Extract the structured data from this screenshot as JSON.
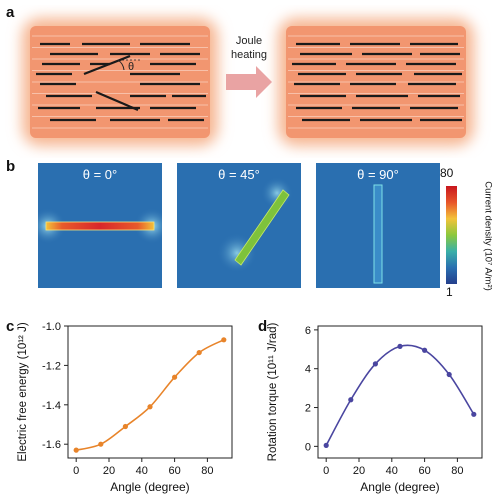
{
  "panels": {
    "a": "a",
    "b": "b",
    "c": "c",
    "d": "d"
  },
  "panel_a": {
    "angle_symbol": "θ",
    "arrow_label_line1": "Joule",
    "arrow_label_line2": "heating",
    "colors": {
      "glow": "#f08a5a",
      "core": "#f3b08e",
      "rod": "#1a1a1a",
      "arrow": "#e8a0a0"
    }
  },
  "panel_b": {
    "titles": [
      "θ = 0°",
      "θ = 45°",
      "θ = 90°"
    ],
    "colorbar": {
      "max": "80",
      "min": "1",
      "label": "Current density (10⁷ A/m²)"
    },
    "colors": {
      "background": "#2a6fb0"
    }
  },
  "chart_data": [
    {
      "type": "line",
      "title": "",
      "xlabel": "Angle (degree)",
      "ylabel": "Electric free energy (10¹² J)",
      "xlim": [
        -5,
        95
      ],
      "ylim": [
        -1.67,
        -1.0
      ],
      "xticks": [
        "0",
        "20",
        "40",
        "60",
        "80"
      ],
      "yticks": [
        "-1.6",
        "-1.4",
        "-1.2",
        "-1.0"
      ],
      "ytick_values": [
        -1.6,
        -1.4,
        -1.2,
        -1.0
      ],
      "xtick_values": [
        0,
        20,
        40,
        60,
        80
      ],
      "color": "#e8842a",
      "x": [
        0,
        15,
        30,
        45,
        60,
        75,
        90
      ],
      "y": [
        -1.63,
        -1.6,
        -1.51,
        -1.41,
        -1.26,
        -1.135,
        -1.07
      ]
    },
    {
      "type": "line",
      "title": "",
      "xlabel": "Angle (degree)",
      "ylabel": "Rotation torque (10¹¹ J/rad)",
      "xlim": [
        -5,
        95
      ],
      "ylim": [
        -0.6,
        6.2
      ],
      "xticks": [
        "0",
        "20",
        "40",
        "60",
        "80"
      ],
      "yticks": [
        "0",
        "2",
        "4",
        "6"
      ],
      "ytick_values": [
        0,
        2,
        4,
        6
      ],
      "xtick_values": [
        0,
        20,
        40,
        60,
        80
      ],
      "color": "#4a46a0",
      "x": [
        0,
        15,
        30,
        45,
        60,
        75,
        90
      ],
      "y": [
        0.05,
        2.4,
        4.25,
        5.15,
        4.95,
        3.7,
        1.65
      ]
    }
  ]
}
